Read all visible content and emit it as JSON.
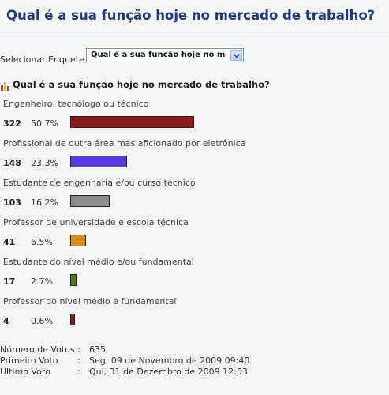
{
  "header": {
    "title": "Qual é a sua função hoje no mercado de trabalho?"
  },
  "selector": {
    "label": "Selecionar Enquete",
    "selected": "Qual é a sua função hoje no mer"
  },
  "poll": {
    "question": "Qual é a sua função hoje no mercado de trabalho?",
    "options": [
      {
        "label": "Engenheiro, tecnólogo ou técnico",
        "votes": "322",
        "percent_text": "50.7%",
        "percent": 50.7,
        "color": "#8b1a1a"
      },
      {
        "label": "Profissional de outra área mas aficionado por eletrônica",
        "votes": "148",
        "percent_text": "23.3%",
        "percent": 23.3,
        "color": "#5a3ae0"
      },
      {
        "label": "Estudante de engenharia e/ou curso técnico",
        "votes": "103",
        "percent_text": "16.2%",
        "percent": 16.2,
        "color": "#8c8c8c"
      },
      {
        "label": "Professor de universidade e escola técnica",
        "votes": "41",
        "percent_text": "6.5%",
        "percent": 6.5,
        "color": "#d9900f"
      },
      {
        "label": "Estudante do nível médio e/ou fundamental",
        "votes": "17",
        "percent_text": "2.7%",
        "percent": 2.7,
        "color": "#4f7a1f"
      },
      {
        "label": "Professor do nível médio e fundamental",
        "votes": "4",
        "percent_text": "0.6%",
        "percent": 0.6,
        "color": "#8b1a1a"
      }
    ]
  },
  "stats": [
    {
      "label": "Número de Votos",
      "value": "635"
    },
    {
      "label": "Primeiro Voto",
      "value": "Seg, 09 de Novembro de 2009 09:40"
    },
    {
      "label": "Último Voto",
      "value": "Qui, 31 de Dezembro de 2009 12:53"
    }
  ],
  "icons": {
    "poll": "bar-chart-icon",
    "dropdown": "chevron-down-icon"
  }
}
